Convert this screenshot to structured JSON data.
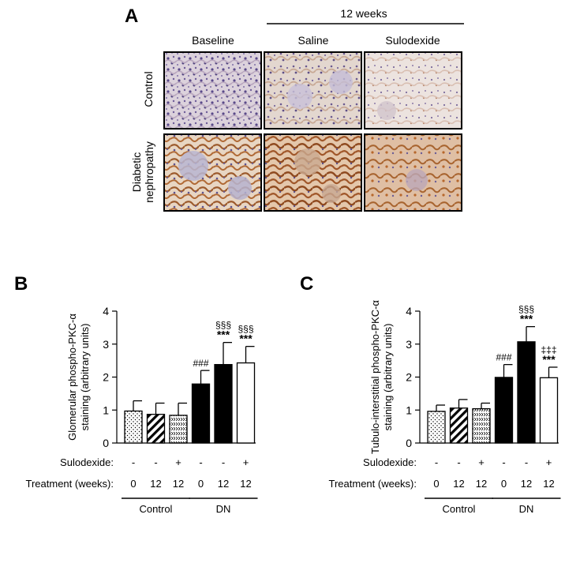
{
  "panel_a": {
    "label": "A",
    "period_header": "12 weeks",
    "columns": [
      "Baseline",
      "Saline",
      "Sulodexide"
    ],
    "rows": [
      "Control",
      "Diabetic nephropathy"
    ],
    "row_lines": [
      [
        "Control"
      ],
      [
        "Diabetic",
        "nephropathy"
      ]
    ]
  },
  "x_table": {
    "sulodexide_label": "Sulodexide:",
    "treatment_label": "Treatment (weeks):",
    "sulodexide": [
      "-",
      "-",
      "+",
      "-",
      "-",
      "+"
    ],
    "weeks": [
      "0",
      "12",
      "12",
      "0",
      "12",
      "12"
    ],
    "groups": [
      "Control",
      "DN"
    ]
  },
  "chart_data": [
    {
      "type": "bar",
      "panel": "B",
      "ylabel": "Glomerular phospho-PKC-α staining (arbitrary units)",
      "ylabel_lines": [
        "Glomerular phospho-PKC-α",
        "staining (arbitrary units)"
      ],
      "ylim": [
        0,
        4
      ],
      "yticks": [
        "0",
        "1",
        "2",
        "3",
        "4"
      ],
      "values": [
        0.97,
        0.87,
        0.84,
        1.79,
        2.38,
        2.43
      ],
      "errors": [
        0.31,
        0.34,
        0.37,
        0.41,
        0.67,
        0.5
      ],
      "patterns": [
        "dots",
        "diag",
        "cross",
        "black",
        "black",
        "white"
      ],
      "annotations": [
        [],
        [],
        [],
        [
          "###"
        ],
        [
          "§§§",
          "***"
        ],
        [
          "§§§",
          "***"
        ]
      ]
    },
    {
      "type": "bar",
      "panel": "C",
      "ylabel": "Tubulo-interstitial phospho-PKC-α staining (arbitrary units)",
      "ylabel_lines": [
        "Tubulo-interstitial phospho-PKC-α",
        "staining (arbitrary units)"
      ],
      "ylim": [
        0,
        4
      ],
      "yticks": [
        "0",
        "1",
        "2",
        "3",
        "4"
      ],
      "values": [
        0.96,
        1.06,
        1.04,
        1.99,
        3.07,
        1.98
      ],
      "errors": [
        0.19,
        0.26,
        0.17,
        0.39,
        0.46,
        0.32
      ],
      "patterns": [
        "dots",
        "diag",
        "cross",
        "black",
        "black",
        "white"
      ],
      "annotations": [
        [],
        [],
        [],
        [
          "###"
        ],
        [
          "§§§",
          "***"
        ],
        [
          "‡‡‡",
          "***"
        ]
      ]
    }
  ]
}
